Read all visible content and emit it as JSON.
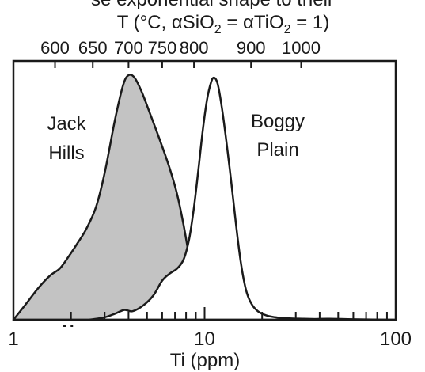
{
  "caption_fragment": "se exponential shape to their",
  "chart_data": {
    "type": "area",
    "scale": "log",
    "xlabel": "Ti (ppm)",
    "xlim": [
      1,
      100
    ],
    "x_tick_labels": [
      "1",
      "10",
      "100"
    ],
    "top_axis": {
      "label": "T (°C, αSiO",
      "label_sub1": "2",
      "label_mid": " = αTiO",
      "label_sub2": "2",
      "label_end": " = 1)",
      "tick_labels": [
        "600",
        "650",
        "700",
        "750",
        "800",
        "900",
        "1000"
      ],
      "tick_positions_ti_ppm": [
        1.65,
        2.6,
        4.0,
        6.0,
        8.8,
        17.5,
        32.0
      ]
    },
    "ylim": [
      0,
      1.0
    ],
    "series": [
      {
        "name": "Jack Hills",
        "label_line1": "Jack",
        "label_line2": "Hills",
        "fill": "#c3c3c3",
        "x": [
          1.0,
          1.15,
          1.35,
          1.55,
          1.75,
          1.95,
          2.15,
          2.4,
          2.7,
          3.0,
          3.4,
          3.75,
          4.0,
          4.3,
          4.7,
          5.2,
          5.8,
          6.5,
          7.2,
          7.8,
          8.5,
          9.2,
          10.0,
          11.0,
          12.5,
          14.0,
          16.0,
          18.5,
          22.0,
          27.0,
          33.0,
          40.0,
          50.0
        ],
        "y": [
          0.0,
          0.06,
          0.13,
          0.18,
          0.21,
          0.26,
          0.31,
          0.37,
          0.46,
          0.6,
          0.82,
          0.96,
          1.0,
          0.99,
          0.93,
          0.84,
          0.74,
          0.63,
          0.51,
          0.38,
          0.22,
          0.145,
          0.125,
          0.115,
          0.085,
          0.06,
          0.04,
          0.022,
          0.012,
          0.006,
          0.004,
          0.002,
          0.0
        ]
      },
      {
        "name": "Boggy Plain",
        "label_line1": "Boggy",
        "label_line2": "Plain",
        "fill": "#ffffff",
        "x": [
          2.5,
          3.0,
          3.4,
          3.8,
          4.2,
          4.8,
          5.4,
          6.0,
          6.6,
          7.2,
          7.8,
          8.3,
          8.8,
          9.3,
          9.8,
          10.3,
          10.8,
          11.2,
          11.7,
          12.3,
          13.0,
          13.8,
          14.6,
          15.5,
          16.5,
          17.6,
          19.0,
          21.0,
          24.0,
          28.0,
          35.0,
          45.0,
          60.0,
          100.0
        ],
        "y": [
          0.0,
          0.01,
          0.025,
          0.04,
          0.035,
          0.06,
          0.1,
          0.16,
          0.19,
          0.21,
          0.25,
          0.33,
          0.46,
          0.62,
          0.78,
          0.9,
          0.97,
          0.99,
          0.965,
          0.87,
          0.73,
          0.56,
          0.39,
          0.23,
          0.12,
          0.065,
          0.035,
          0.018,
          0.009,
          0.005,
          0.003,
          0.004,
          0.002,
          0.0
        ]
      }
    ],
    "marks": {
      "dots_near_ti": [
        1.85,
        2.02
      ]
    }
  }
}
